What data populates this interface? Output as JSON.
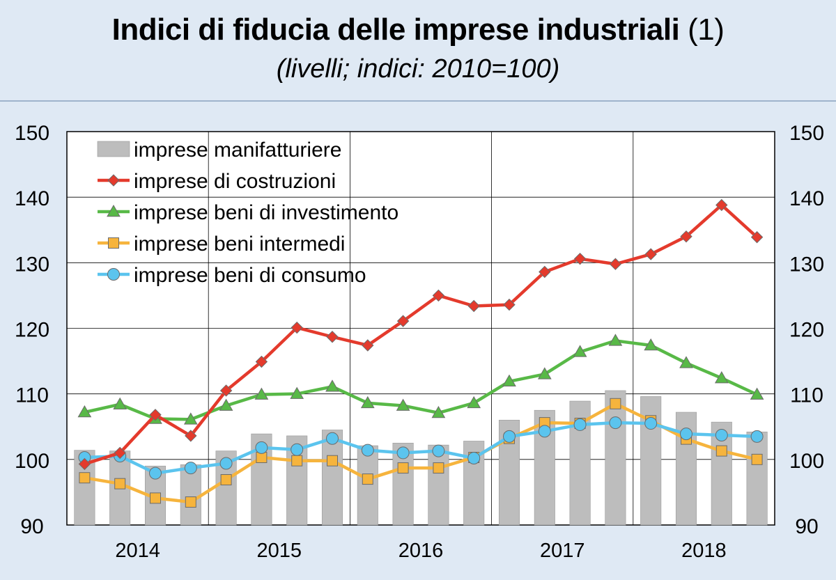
{
  "header": {
    "title": "Indici di fiducia delle imprese industriali",
    "title_note": "(1)",
    "subtitle": "(livelli; indici: 2010=100)"
  },
  "chart_data": {
    "type": "bar+line",
    "title": "Indici di fiducia delle imprese industriali (1)",
    "subtitle": "(livelli; indici: 2010=100)",
    "xlabel": "",
    "ylabel": "",
    "ylim": [
      90,
      150
    ],
    "yticks": [
      90,
      100,
      110,
      120,
      130,
      140,
      150
    ],
    "x_year_labels": [
      "2014",
      "2015",
      "2016",
      "2017",
      "2018"
    ],
    "quarters": [
      "2014Q1",
      "2014Q2",
      "2014Q3",
      "2014Q4",
      "2015Q1",
      "2015Q2",
      "2015Q3",
      "2015Q4",
      "2016Q1",
      "2016Q2",
      "2016Q3",
      "2016Q4",
      "2017Q1",
      "2017Q2",
      "2017Q3",
      "2017Q4",
      "2018Q1",
      "2018Q2",
      "2018Q3",
      "2018Q4"
    ],
    "grid": true,
    "legend_position": "top-left",
    "series": [
      {
        "name": "imprese manifatturiere",
        "kind": "bar",
        "color": "#bdbdbd",
        "values": [
          101.4,
          101.3,
          99.0,
          99.2,
          101.3,
          103.9,
          103.6,
          104.5,
          102.1,
          102.5,
          102.2,
          102.8,
          106.0,
          107.5,
          108.9,
          110.5,
          109.6,
          107.2,
          105.7,
          104.2
        ]
      },
      {
        "name": "imprese di costruzioni",
        "kind": "line",
        "marker": "diamond",
        "color": "#e43a2c",
        "values": [
          99.3,
          101.0,
          106.8,
          103.6,
          110.5,
          114.9,
          120.1,
          118.7,
          117.4,
          121.1,
          125.0,
          123.4,
          123.6,
          128.6,
          130.6,
          129.8,
          131.3,
          134.0,
          138.8,
          133.9
        ]
      },
      {
        "name": "imprese beni di investimento",
        "kind": "line",
        "marker": "triangle",
        "color": "#58b947",
        "values": [
          107.2,
          108.4,
          106.2,
          106.1,
          108.2,
          109.9,
          110.0,
          111.1,
          108.6,
          108.2,
          107.1,
          108.6,
          111.9,
          113.0,
          116.4,
          118.1,
          117.4,
          114.7,
          112.4,
          109.9
        ]
      },
      {
        "name": "imprese beni intermedi",
        "kind": "line",
        "marker": "square",
        "color": "#f6b43d",
        "values": [
          97.2,
          96.3,
          94.1,
          93.5,
          96.9,
          100.3,
          99.8,
          99.8,
          97.0,
          98.7,
          98.7,
          100.3,
          103.2,
          105.6,
          105.5,
          108.5,
          105.9,
          103.1,
          101.3,
          100.0
        ]
      },
      {
        "name": "imprese beni di consumo",
        "kind": "line",
        "marker": "circle",
        "color": "#5bc4ee",
        "values": [
          100.3,
          100.5,
          97.9,
          98.7,
          99.4,
          101.8,
          101.5,
          103.2,
          101.4,
          101.0,
          101.3,
          100.2,
          103.5,
          104.3,
          105.3,
          105.6,
          105.5,
          103.9,
          103.7,
          103.5
        ]
      }
    ]
  }
}
